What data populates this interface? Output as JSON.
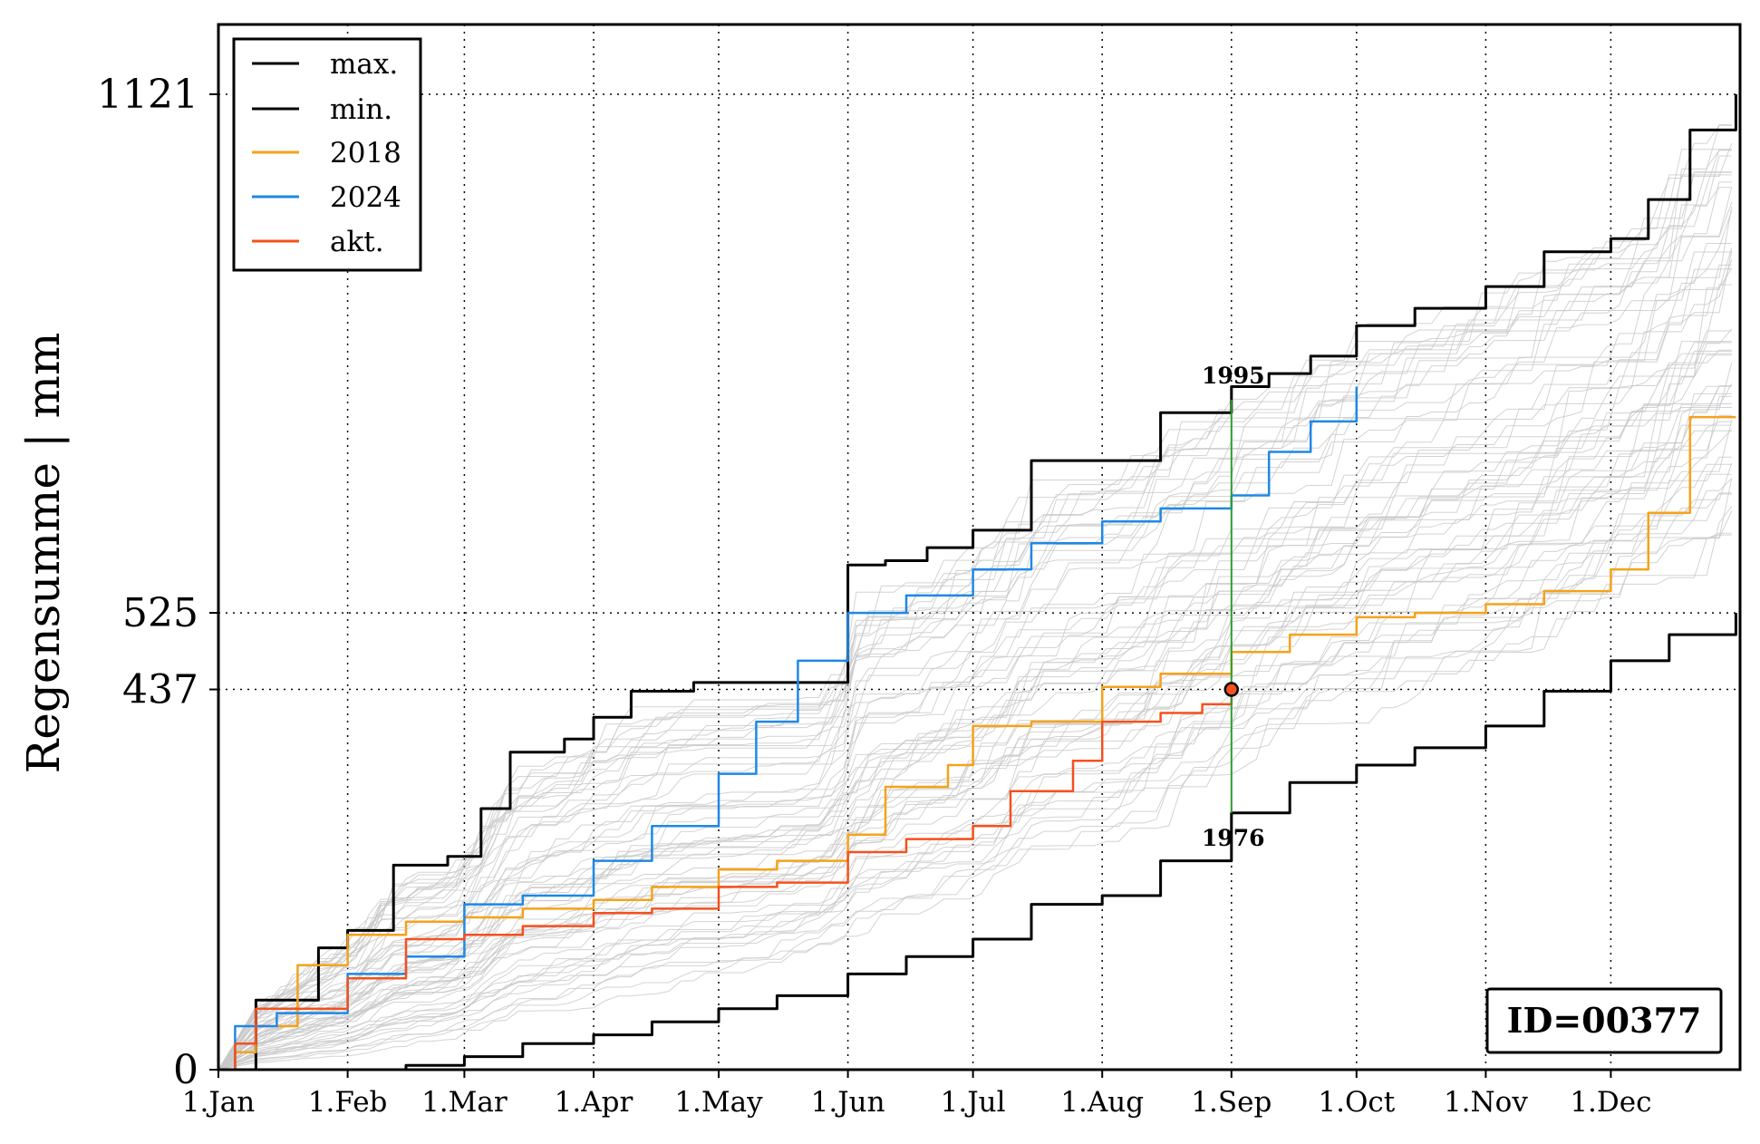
{
  "chart_data": {
    "type": "line",
    "title": "",
    "xlabel": "",
    "ylabel": "Regensumme | mm",
    "ylim": [
      0,
      1121
    ],
    "xlim": [
      "1.Jan",
      "31.Dec"
    ],
    "grid": "dotted",
    "legend_position": "top-left",
    "x_ticks": [
      "1.Jan",
      "1.Feb",
      "1.Mar",
      "1.Apr",
      "1.May",
      "1.Jun",
      "1.Jul",
      "1.Aug",
      "1.Sep",
      "1.Oct",
      "1.Nov",
      "1.Dec"
    ],
    "y_ticks": [
      "0",
      "437",
      "525",
      "1121"
    ],
    "legend": [
      "max.",
      "min.",
      "2018",
      "2024",
      "akt."
    ],
    "series": [
      {
        "name": "max.",
        "color": "#000000",
        "points": [
          [
            "1.Jan",
            0
          ],
          [
            "10.Jan",
            80
          ],
          [
            "25.Jan",
            140
          ],
          [
            "1.Feb",
            160
          ],
          [
            "12.Feb",
            235
          ],
          [
            "25.Feb",
            245
          ],
          [
            "5.Mar",
            300
          ],
          [
            "12.Mar",
            365
          ],
          [
            "25.Mar",
            380
          ],
          [
            "1.Apr",
            405
          ],
          [
            "10.Apr",
            435
          ],
          [
            "25.Apr",
            445
          ],
          [
            "5.May",
            430
          ],
          [
            "10.May",
            440
          ],
          [
            "25.May",
            445
          ],
          [
            "1.Jun",
            525
          ],
          [
            "5.Jun",
            570
          ],
          [
            "12.Jun",
            580
          ],
          [
            "1.Jun",
            580
          ],
          [
            "10.Jun",
            585
          ],
          [
            "20.Jun",
            600
          ],
          [
            "1.Jul",
            620
          ],
          [
            "15.Jul",
            700
          ],
          [
            "1.Aug",
            700
          ],
          [
            "15.Aug",
            755
          ],
          [
            "1.Sep",
            785
          ],
          [
            "10.Sep",
            800
          ],
          [
            "20.Sep",
            820
          ],
          [
            "1.Oct",
            855
          ],
          [
            "15.Oct",
            875
          ],
          [
            "1.Nov",
            900
          ],
          [
            "15.Nov",
            940
          ],
          [
            "1.Dec",
            955
          ],
          [
            "10.Dec",
            1000
          ],
          [
            "20.Dec",
            1080
          ],
          [
            "31.Dec",
            1121
          ]
        ]
      },
      {
        "name": "min.",
        "color": "#000000",
        "points": [
          [
            "1.Jan",
            0
          ],
          [
            "1.Feb",
            0
          ],
          [
            "15.Feb",
            5
          ],
          [
            "1.Mar",
            15
          ],
          [
            "15.Mar",
            30
          ],
          [
            "1.Apr",
            40
          ],
          [
            "15.Apr",
            55
          ],
          [
            "1.May",
            70
          ],
          [
            "15.May",
            85
          ],
          [
            "1.Jun",
            110
          ],
          [
            "15.Jun",
            130
          ],
          [
            "1.Jul",
            150
          ],
          [
            "15.Jul",
            190
          ],
          [
            "1.Aug",
            200
          ],
          [
            "15.Aug",
            240
          ],
          [
            "1.Sep",
            295
          ],
          [
            "15.Sep",
            330
          ],
          [
            "1.Oct",
            350
          ],
          [
            "15.Oct",
            370
          ],
          [
            "1.Nov",
            395
          ],
          [
            "15.Nov",
            435
          ],
          [
            "1.Dec",
            470
          ],
          [
            "15.Dec",
            500
          ],
          [
            "31.Dec",
            525
          ]
        ]
      },
      {
        "name": "2018",
        "color": "#f5a21b",
        "points": [
          [
            "1.Jan",
            0
          ],
          [
            "5.Jan",
            20
          ],
          [
            "10.Jan",
            50
          ],
          [
            "20.Jan",
            120
          ],
          [
            "1.Feb",
            155
          ],
          [
            "15.Feb",
            170
          ],
          [
            "1.Mar",
            175
          ],
          [
            "15.Mar",
            185
          ],
          [
            "1.Apr",
            195
          ],
          [
            "15.Apr",
            210
          ],
          [
            "1.May",
            230
          ],
          [
            "15.May",
            240
          ],
          [
            "1.Jun",
            270
          ],
          [
            "10.Jun",
            325
          ],
          [
            "25.Jun",
            350
          ],
          [
            "1.Jul",
            395
          ],
          [
            "15.Jul",
            400
          ],
          [
            "1.Aug",
            440
          ],
          [
            "15.Aug",
            455
          ],
          [
            "1.Sep",
            480
          ],
          [
            "15.Sep",
            500
          ],
          [
            "1.Oct",
            520
          ],
          [
            "15.Oct",
            525
          ],
          [
            "1.Nov",
            535
          ],
          [
            "15.Nov",
            550
          ],
          [
            "1.Dec",
            575
          ],
          [
            "10.Dec",
            640
          ],
          [
            "20.Dec",
            750
          ],
          [
            "31.Dec",
            750
          ]
        ]
      },
      {
        "name": "2024",
        "color": "#1e88e5",
        "points": [
          [
            "1.Jan",
            0
          ],
          [
            "5.Jan",
            50
          ],
          [
            "15.Jan",
            65
          ],
          [
            "1.Feb",
            110
          ],
          [
            "15.Feb",
            130
          ],
          [
            "1.Mar",
            190
          ],
          [
            "15.Mar",
            200
          ],
          [
            "1.Apr",
            240
          ],
          [
            "15.Apr",
            280
          ],
          [
            "1.May",
            340
          ],
          [
            "10.May",
            400
          ],
          [
            "20.May",
            470
          ],
          [
            "1.Jun",
            525
          ],
          [
            "15.Jun",
            545
          ],
          [
            "1.Jul",
            575
          ],
          [
            "15.Jul",
            605
          ],
          [
            "1.Aug",
            630
          ],
          [
            "15.Aug",
            645
          ],
          [
            "1.Sep",
            660
          ],
          [
            "10.Sep",
            710
          ],
          [
            "20.Sep",
            745
          ],
          [
            "1.Oct",
            785
          ]
        ]
      },
      {
        "name": "akt.",
        "color": "#f4511e",
        "points": [
          [
            "1.Jan",
            0
          ],
          [
            "5.Jan",
            30
          ],
          [
            "10.Jan",
            70
          ],
          [
            "1.Feb",
            105
          ],
          [
            "15.Feb",
            150
          ],
          [
            "1.Mar",
            155
          ],
          [
            "15.Mar",
            165
          ],
          [
            "1.Apr",
            180
          ],
          [
            "15.Apr",
            185
          ],
          [
            "1.May",
            210
          ],
          [
            "15.May",
            215
          ],
          [
            "1.Jun",
            250
          ],
          [
            "15.Jun",
            265
          ],
          [
            "1.Jul",
            280
          ],
          [
            "10.Jul",
            320
          ],
          [
            "25.Jul",
            355
          ],
          [
            "1.Aug",
            400
          ],
          [
            "15.Aug",
            410
          ],
          [
            "25.Aug",
            420
          ],
          [
            "1.Sep",
            437
          ]
        ]
      }
    ],
    "annotations": [
      {
        "text": "1995",
        "x": "1.Sep",
        "y": 770
      },
      {
        "text": "1976",
        "x": "1.Sep",
        "y": 295
      }
    ],
    "current_point": {
      "x": "1.Sep",
      "y": 437
    },
    "id_label": "ID=00377"
  },
  "colors": {
    "max": "#000000",
    "min": "#000000",
    "y2018": "#f5a21b",
    "y2024": "#1e88e5",
    "akt": "#f4511e",
    "background_lines": "#c8c8c8",
    "vline": "#2e9c2e"
  }
}
